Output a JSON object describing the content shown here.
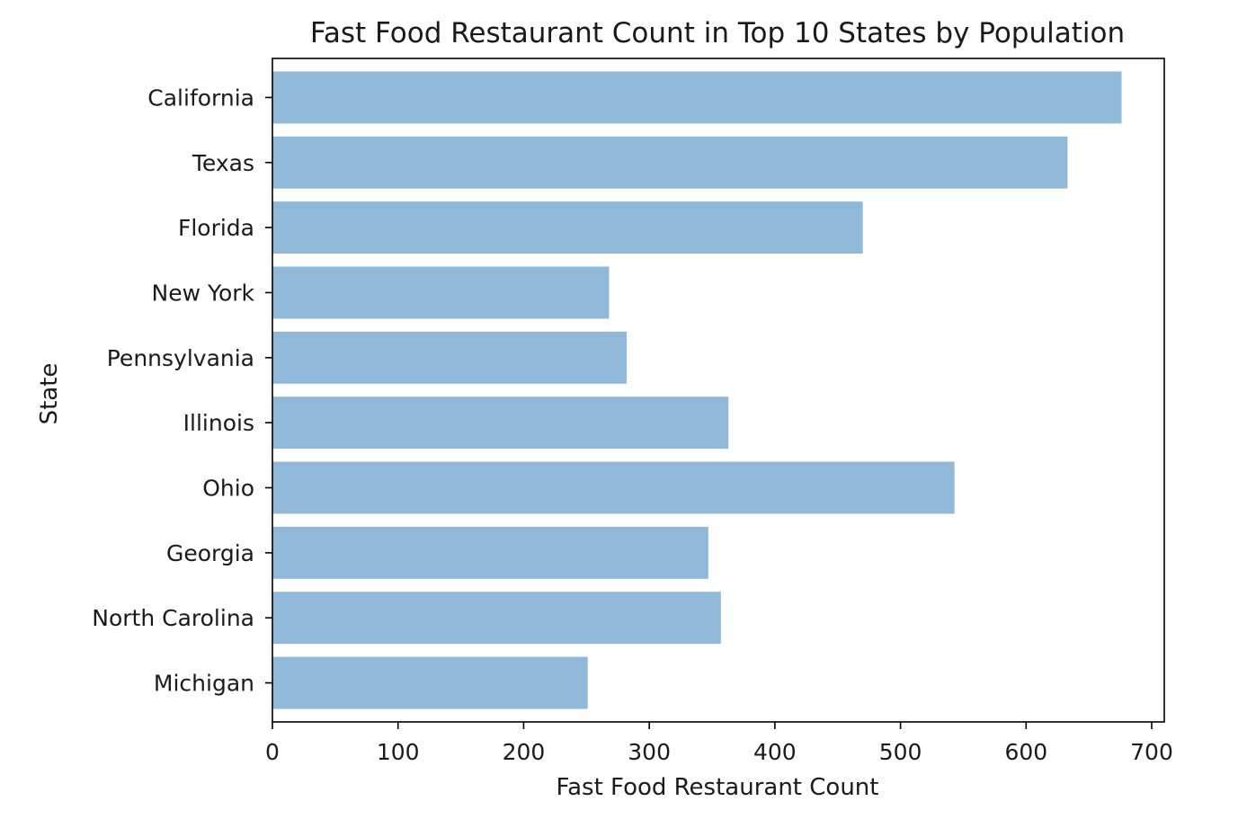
{
  "chart_data": {
    "type": "bar",
    "orientation": "horizontal",
    "title": "Fast Food Restaurant Count in Top 10 States by Population",
    "xlabel": "Fast Food Restaurant Count",
    "ylabel": "State",
    "categories": [
      "California",
      "Texas",
      "Florida",
      "New York",
      "Pennsylvania",
      "Illinois",
      "Ohio",
      "Georgia",
      "North Carolina",
      "Michigan"
    ],
    "values": [
      676,
      633,
      470,
      268,
      282,
      363,
      543,
      347,
      357,
      251
    ],
    "xlim": [
      0,
      710
    ],
    "xticks": [
      0,
      100,
      200,
      300,
      400,
      500,
      600,
      700
    ],
    "grid": false,
    "bar_color": "#8fb8d9",
    "axis_color": "#000000"
  }
}
